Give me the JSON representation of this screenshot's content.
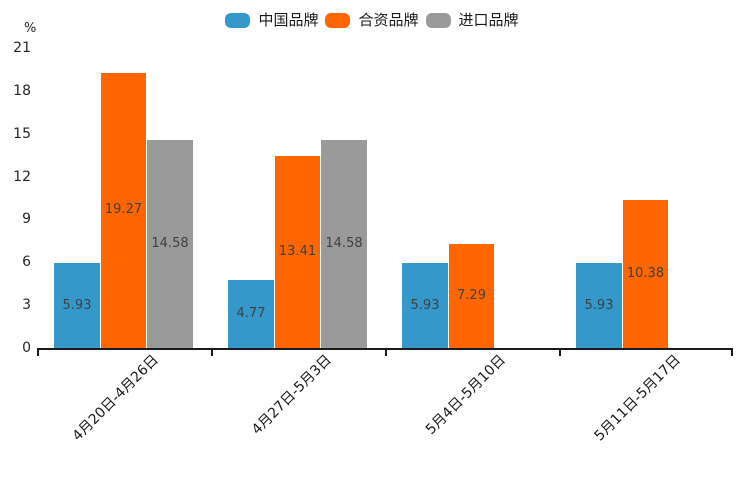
{
  "chart_data": {
    "type": "bar",
    "title": "",
    "ylabel": "%",
    "xlabel": "",
    "categories": [
      "4月20日-4月26日",
      "4月27日-5月3日",
      "5月4日-5月10日",
      "5月11日-5月17日"
    ],
    "series": [
      {
        "name": "中国品牌",
        "color": "#3498CB",
        "values": [
          5.93,
          4.77,
          5.93,
          5.93
        ]
      },
      {
        "name": "合资品牌",
        "color": "#FF6600",
        "values": [
          19.27,
          13.41,
          7.29,
          10.38
        ]
      },
      {
        "name": "进口品牌",
        "color": "#9A9A9A",
        "values": [
          14.58,
          14.58,
          null,
          null
        ]
      }
    ],
    "ylim": [
      0,
      21
    ],
    "yticks": [
      0,
      3,
      6,
      9,
      12,
      15,
      18,
      21
    ],
    "value_labels": true,
    "value_label_format": "2dp",
    "legend_position": "top-center",
    "grid": false,
    "axis_color": "#1a1a1a",
    "x_label_rotation_deg": 45
  }
}
